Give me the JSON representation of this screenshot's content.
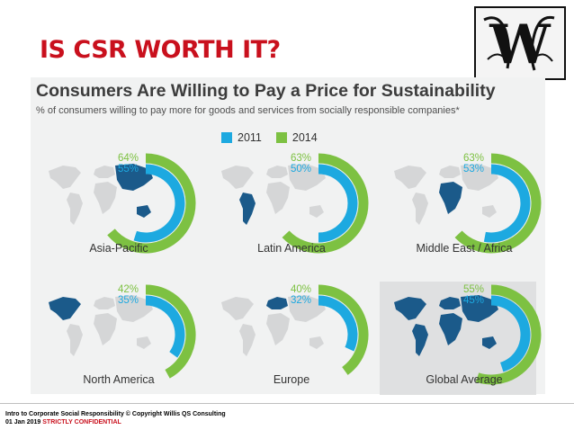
{
  "slide": {
    "title": "IS CSR WORTH IT?",
    "footer_line1": "Intro to Corporate Social Responsibility © Copyright Willis QS Consulting",
    "footer_date": "01 Jan 2019",
    "footer_confidential": "STRICTLY CONFIDENTIAL",
    "logo_letter": "W"
  },
  "colors": {
    "y2011": "#1da9e0",
    "y2014": "#7dc142",
    "map": "#d5d6d7",
    "map_highlight": "#1b5a8a",
    "title_red": "#c9101d"
  },
  "chart_data": {
    "type": "radial-bar",
    "title": "Consumers Are Willing to Pay a Price for Sustainability",
    "subtitle": "% of consumers willing to pay more for goods and services from socially responsible companies*",
    "legend": [
      "2011",
      "2014"
    ],
    "legend_position": "top-center",
    "max": 100,
    "regions": [
      {
        "name": "Asia-Pacific",
        "y2011": 55,
        "y2014": 64,
        "label_2011": "55%",
        "label_2014": "64%",
        "highlight": "asia"
      },
      {
        "name": "Latin America",
        "y2011": 50,
        "y2014": 63,
        "label_2011": "50%",
        "label_2014": "63%",
        "highlight": "latam"
      },
      {
        "name": "Middle East / Africa",
        "y2011": 53,
        "y2014": 63,
        "label_2011": "53%",
        "label_2014": "63%",
        "highlight": "mea"
      },
      {
        "name": "North America",
        "y2011": 35,
        "y2014": 42,
        "label_2011": "35%",
        "label_2014": "42%",
        "highlight": "na"
      },
      {
        "name": "Europe",
        "y2011": 32,
        "y2014": 40,
        "label_2011": "32%",
        "label_2014": "40%",
        "highlight": "europe"
      },
      {
        "name": "Global Average",
        "y2011": 45,
        "y2014": 55,
        "label_2011": "45%",
        "label_2014": "55%",
        "highlight": "all",
        "emphasized": true
      }
    ]
  }
}
